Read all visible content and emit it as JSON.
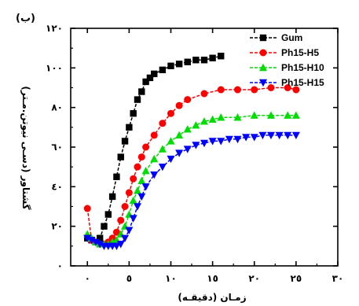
{
  "chart_data": {
    "type": "line",
    "panel_label": "(ب)",
    "xlabel": "زمـان (دقیقـه)",
    "ylabel": "گشتاور (دسـی نیوتن.مـتر)",
    "xlim": [
      -2,
      30
    ],
    "ylim": [
      0,
      120
    ],
    "x_ticks": [
      0,
      5,
      10,
      15,
      20,
      25,
      30
    ],
    "x_tick_labels": [
      "٠",
      "٥",
      "١٠",
      "١٥",
      "٢٠",
      "٢٥",
      "٣٠"
    ],
    "y_ticks": [
      0,
      20,
      40,
      60,
      80,
      100,
      120
    ],
    "y_tick_labels": [
      "٠",
      "٢٠",
      "٤٠",
      "٦٠",
      "٨٠",
      "١٠٠",
      "١٢٠"
    ],
    "legend_position": "top-right",
    "series": [
      {
        "name": "Gum",
        "color": "#000000",
        "marker": "square",
        "x": [
          0,
          0.5,
          1,
          1.5,
          2,
          2.5,
          3,
          3.5,
          4,
          4.5,
          5,
          5.5,
          6,
          6.5,
          7,
          7.5,
          8,
          9,
          10,
          11,
          12,
          13,
          14,
          15,
          16
        ],
        "y": [
          14,
          13,
          12,
          14,
          20,
          26,
          35,
          45,
          55,
          63,
          70,
          77,
          84,
          88,
          93,
          95,
          97,
          99,
          101,
          102,
          103,
          104,
          104,
          105,
          106
        ]
      },
      {
        "name": "Ph15-H5",
        "color": "#ff0000",
        "marker": "circle",
        "x": [
          0,
          0.5,
          1,
          1.5,
          2,
          2.5,
          3,
          3.5,
          4,
          4.5,
          5,
          5.5,
          6,
          6.5,
          7,
          8,
          9,
          10,
          11,
          12,
          14,
          16,
          18,
          20,
          22,
          24,
          25
        ],
        "y": [
          29,
          13,
          12,
          11,
          11,
          12,
          14,
          17,
          23,
          30,
          37,
          44,
          50,
          55,
          60,
          66,
          72,
          77,
          81,
          84,
          87,
          89,
          89,
          89,
          90,
          90,
          89
        ]
      },
      {
        "name": "Ph15-H10",
        "color": "#00dd00",
        "marker": "triangle-up",
        "x": [
          0,
          0.5,
          1,
          1.5,
          2,
          2.5,
          3,
          3.5,
          4,
          4.5,
          5,
          5.5,
          6,
          6.5,
          7,
          8,
          9,
          10,
          11,
          12,
          13,
          14,
          15,
          16,
          18,
          20,
          22,
          24,
          25
        ],
        "y": [
          16,
          14,
          12,
          11,
          11,
          11,
          12,
          13,
          16,
          20,
          26,
          33,
          38,
          43,
          48,
          54,
          59,
          63,
          66,
          69,
          71,
          73,
          74,
          75,
          75,
          76,
          76,
          76,
          76
        ]
      },
      {
        "name": "Ph15-H15",
        "color": "#0000ff",
        "marker": "triangle-down",
        "x": [
          0,
          0.5,
          1,
          1.5,
          2,
          2.5,
          3,
          3.5,
          4,
          4.5,
          5,
          5.5,
          6,
          6.5,
          7,
          8,
          9,
          10,
          11,
          12,
          13,
          14,
          15,
          16,
          17,
          18,
          19,
          20,
          21,
          22,
          23,
          24,
          25
        ],
        "y": [
          14,
          13,
          12,
          11,
          10,
          10,
          10,
          10,
          11,
          14,
          18,
          24,
          30,
          35,
          40,
          46,
          50,
          54,
          57,
          59,
          61,
          62,
          63,
          63,
          64,
          64,
          65,
          65,
          66,
          66,
          66,
          66,
          66
        ]
      }
    ]
  }
}
